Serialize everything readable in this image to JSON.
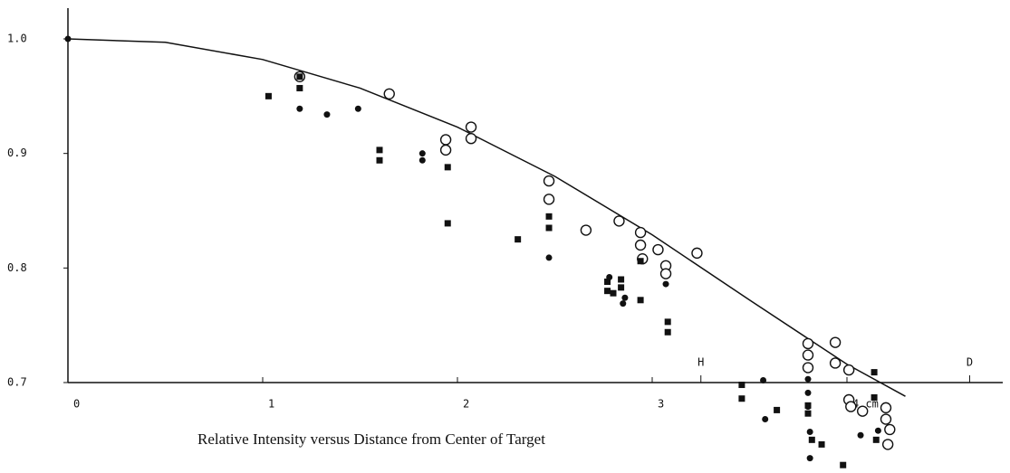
{
  "chart_data": {
    "type": "scatter",
    "title": "Relative Intensity versus Distance  from Center of Target",
    "xlim": [
      0,
      4.8
    ],
    "ylim": [
      0.625,
      1.03
    ],
    "xticks": [
      0,
      1,
      2,
      3,
      {
        "value": 4,
        "label": "4 cm."
      }
    ],
    "yticks": [
      0.7,
      0.8,
      0.9,
      {
        "value": 1,
        "label": "1.0"
      }
    ],
    "annotations": [
      {
        "text": "H",
        "x": 3.25
      },
      {
        "text": "D",
        "x": 4.63
      }
    ],
    "series": [
      {
        "mode": "line",
        "color": "#111",
        "x": [
          0,
          0.5,
          1,
          1.5,
          2,
          2.5,
          3,
          3.5,
          4,
          4.3
        ],
        "values": [
          1.0,
          0.997,
          0.982,
          0.957,
          0.923,
          0.88,
          0.829,
          0.772,
          0.716,
          0.688
        ]
      },
      {
        "mode": "open-circle",
        "color": "#111",
        "x": [
          1.19,
          1.65,
          1.94,
          1.94,
          2.07,
          2.07,
          2.47,
          2.47,
          2.66,
          2.83,
          2.94,
          2.94,
          2.95,
          3.03,
          3.07,
          3.07,
          3.23,
          3.8,
          3.8,
          3.8,
          3.94,
          3.94,
          4.01,
          4.01,
          4.02,
          4.08,
          4.2,
          4.2,
          4.22,
          4.21
        ],
        "values": [
          0.967,
          0.952,
          0.912,
          0.903,
          0.923,
          0.913,
          0.876,
          0.86,
          0.833,
          0.841,
          0.831,
          0.82,
          0.808,
          0.816,
          0.802,
          0.795,
          0.813,
          0.734,
          0.724,
          0.713,
          0.735,
          0.717,
          0.711,
          0.685,
          0.679,
          0.675,
          0.678,
          0.668,
          0.659,
          0.646
        ]
      },
      {
        "mode": "square",
        "color": "#111",
        "x": [
          1.03,
          1.19,
          1.19,
          1.6,
          1.6,
          1.95,
          1.95,
          2.31,
          2.47,
          2.47,
          2.77,
          2.77,
          2.84,
          2.84,
          2.8,
          2.94,
          2.94,
          3.08,
          3.08,
          3.46,
          3.46,
          3.64,
          3.8,
          3.8,
          3.82,
          3.87,
          3.98,
          4.14,
          4.14,
          4.15
        ],
        "values": [
          0.95,
          0.967,
          0.957,
          0.903,
          0.894,
          0.888,
          0.839,
          0.825,
          0.845,
          0.835,
          0.788,
          0.78,
          0.79,
          0.783,
          0.778,
          0.772,
          0.806,
          0.753,
          0.744,
          0.698,
          0.686,
          0.676,
          0.68,
          0.673,
          0.65,
          0.646,
          0.628,
          0.709,
          0.687,
          0.65
        ]
      },
      {
        "mode": "dot",
        "color": "#111",
        "x": [
          0,
          1.19,
          1.33,
          1.49,
          1.82,
          1.82,
          2.47,
          2.78,
          2.86,
          2.85,
          3.07,
          3.57,
          3.58,
          3.8,
          3.8,
          3.8,
          3.81,
          3.81,
          4.07,
          4.16
        ],
        "values": [
          1.0,
          0.939,
          0.934,
          0.939,
          0.9,
          0.894,
          0.809,
          0.792,
          0.774,
          0.769,
          0.786,
          0.702,
          0.668,
          0.703,
          0.691,
          0.679,
          0.657,
          0.634,
          0.654,
          0.658
        ]
      }
    ]
  }
}
